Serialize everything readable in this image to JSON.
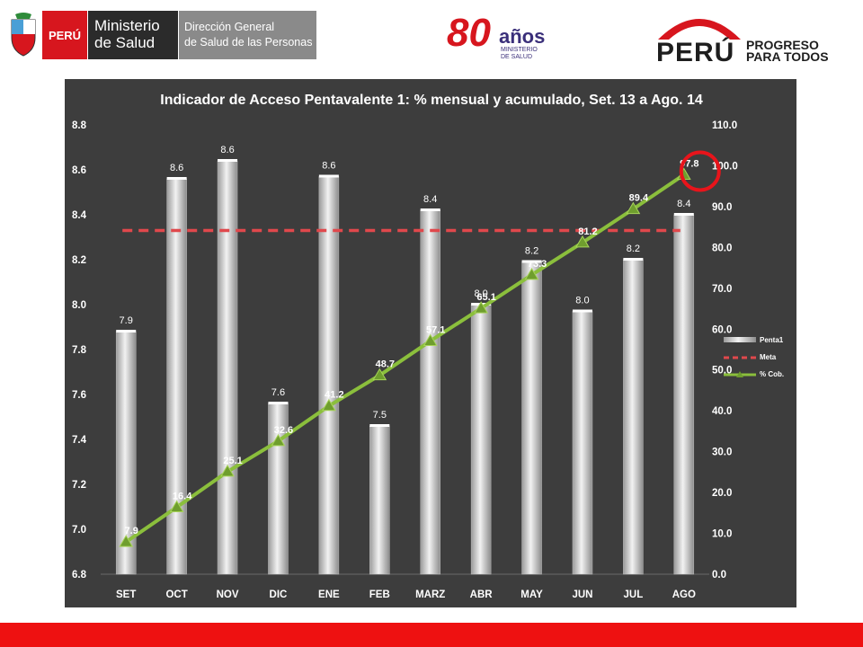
{
  "header": {
    "minsa": {
      "peru_label": "PERÚ",
      "line1": "Ministerio",
      "line2": "de Salud",
      "dg_line1": "Dirección General",
      "dg_line2": "de Salud de las Personas"
    },
    "anios": {
      "number": "80",
      "word": "años",
      "sub1": "MINISTERIO",
      "sub2": "DE SALUD"
    },
    "peru": {
      "word": "PERÚ",
      "line1": "PROGRESO",
      "line2": "PARA TODOS"
    }
  },
  "colors": {
    "panel": "#3d3d3d",
    "bar": "#d9d9d9",
    "meta": "#e0484c",
    "cum": "#8bbf3c",
    "highlight": "#e8141b",
    "bottom_bar": "#ee1111"
  },
  "chart_data": {
    "type": "bar",
    "title": "Indicador de Acceso Pentavalente 1: % mensual y acumulado, Set. 13 a Ago. 14",
    "categories": [
      "SET",
      "OCT",
      "NOV",
      "DIC",
      "ENE",
      "FEB",
      "MARZ",
      "ABR",
      "MAY",
      "JUN",
      "JUL",
      "AGO"
    ],
    "ylim": [
      6.8,
      8.8
    ],
    "yticks": [
      "6.8",
      "7.0",
      "7.2",
      "7.4",
      "7.6",
      "7.8",
      "8.0",
      "8.2",
      "8.4",
      "8.6",
      "8.8"
    ],
    "y2lim": [
      0,
      110
    ],
    "y2ticks": [
      "0.0",
      "10.0",
      "20.0",
      "30.0",
      "40.0",
      "50.0",
      "60.0",
      "70.0",
      "80.0",
      "90.0",
      "100.0",
      "110.0"
    ],
    "series": [
      {
        "name": "Penta1",
        "type": "bar",
        "axis": "left",
        "values": [
          7.88,
          8.56,
          8.64,
          7.56,
          8.57,
          7.46,
          8.42,
          8.0,
          8.19,
          7.97,
          8.2,
          8.4
        ],
        "labels": [
          "7.9",
          "8.6",
          "8.6",
          "7.6",
          "8.6",
          "7.5",
          "8.4",
          "8.0",
          "8.2",
          "8.0",
          "8.2",
          "8.4"
        ]
      },
      {
        "name": "Meta",
        "type": "line",
        "axis": "left",
        "dashed": true,
        "value": 8.33
      },
      {
        "name": "% Cob.",
        "type": "line",
        "axis": "right",
        "values": [
          7.9,
          16.4,
          25.1,
          32.6,
          41.2,
          48.7,
          57.1,
          65.1,
          73.3,
          81.2,
          89.4,
          97.8
        ],
        "labels": [
          "7.9",
          "16.4",
          "25.1",
          "32.6",
          "41.2",
          "48.7",
          "57.1",
          "65.1",
          "73.3",
          "81.2",
          "89.4",
          "97.8"
        ]
      }
    ],
    "legend_position": "right",
    "highlight": "97.8"
  }
}
